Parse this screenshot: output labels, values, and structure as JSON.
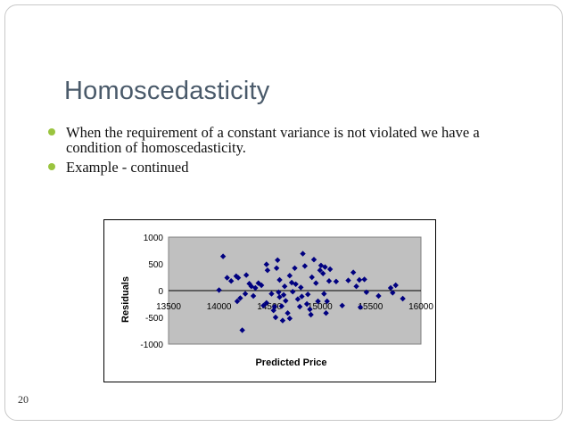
{
  "slide": {
    "title": "Homoscedasticity",
    "bullets": [
      "When the requirement of a constant variance is not violated we have a condition of homoscedasticity.",
      "Example - continued"
    ],
    "page_number": "20"
  },
  "colors": {
    "accent_bullet": "#9ac43f",
    "plot_bg": "#c0c0c0",
    "marker": "#000080",
    "title": "#4a5a6a"
  },
  "chart_data": {
    "type": "scatter",
    "xlabel": "Predicted Price",
    "ylabel": "Residuals",
    "xlim": [
      13500,
      16000
    ],
    "ylim": [
      -1000,
      1000
    ],
    "x_ticks": [
      13500,
      14000,
      14500,
      15000,
      15500,
      16000
    ],
    "y_ticks": [
      1000,
      500,
      0,
      -500,
      -1000
    ],
    "grid": false,
    "legend": "none",
    "points": [
      [
        14000,
        10
      ],
      [
        14040,
        640
      ],
      [
        14080,
        240
      ],
      [
        14120,
        180
      ],
      [
        14170,
        270
      ],
      [
        14190,
        240
      ],
      [
        14180,
        -200
      ],
      [
        14210,
        -140
      ],
      [
        14230,
        -740
      ],
      [
        14260,
        -60
      ],
      [
        14270,
        290
      ],
      [
        14300,
        130
      ],
      [
        14320,
        80
      ],
      [
        14340,
        -100
      ],
      [
        14360,
        50
      ],
      [
        14390,
        140
      ],
      [
        14420,
        100
      ],
      [
        14440,
        -280
      ],
      [
        14470,
        -230
      ],
      [
        14470,
        490
      ],
      [
        14480,
        380
      ],
      [
        14520,
        -60
      ],
      [
        14540,
        -370
      ],
      [
        14550,
        -300
      ],
      [
        14560,
        -500
      ],
      [
        14570,
        420
      ],
      [
        14580,
        570
      ],
      [
        14590,
        -30
      ],
      [
        14600,
        -120
      ],
      [
        14600,
        200
      ],
      [
        14620,
        -290
      ],
      [
        14630,
        -560
      ],
      [
        14640,
        -80
      ],
      [
        14650,
        80
      ],
      [
        14660,
        -190
      ],
      [
        14680,
        -420
      ],
      [
        14700,
        -520
      ],
      [
        14700,
        280
      ],
      [
        14720,
        150
      ],
      [
        14730,
        -20
      ],
      [
        14750,
        420
      ],
      [
        14760,
        120
      ],
      [
        14780,
        -160
      ],
      [
        14800,
        -300
      ],
      [
        14810,
        60
      ],
      [
        14820,
        -110
      ],
      [
        14830,
        690
      ],
      [
        14850,
        460
      ],
      [
        14870,
        -250
      ],
      [
        14880,
        -70
      ],
      [
        14900,
        -350
      ],
      [
        14910,
        -450
      ],
      [
        14920,
        250
      ],
      [
        14940,
        580
      ],
      [
        14960,
        140
      ],
      [
        14980,
        -200
      ],
      [
        15000,
        380
      ],
      [
        15010,
        470
      ],
      [
        15030,
        320
      ],
      [
        15040,
        -60
      ],
      [
        15050,
        440
      ],
      [
        15060,
        -420
      ],
      [
        15070,
        -200
      ],
      [
        15090,
        180
      ],
      [
        15100,
        400
      ],
      [
        15160,
        170
      ],
      [
        15220,
        -280
      ],
      [
        15280,
        190
      ],
      [
        15330,
        340
      ],
      [
        15360,
        80
      ],
      [
        15390,
        200
      ],
      [
        15400,
        -310
      ],
      [
        15440,
        210
      ],
      [
        15460,
        -30
      ],
      [
        15580,
        -100
      ],
      [
        15700,
        50
      ],
      [
        15720,
        -40
      ],
      [
        15750,
        100
      ],
      [
        15820,
        -150
      ]
    ]
  }
}
